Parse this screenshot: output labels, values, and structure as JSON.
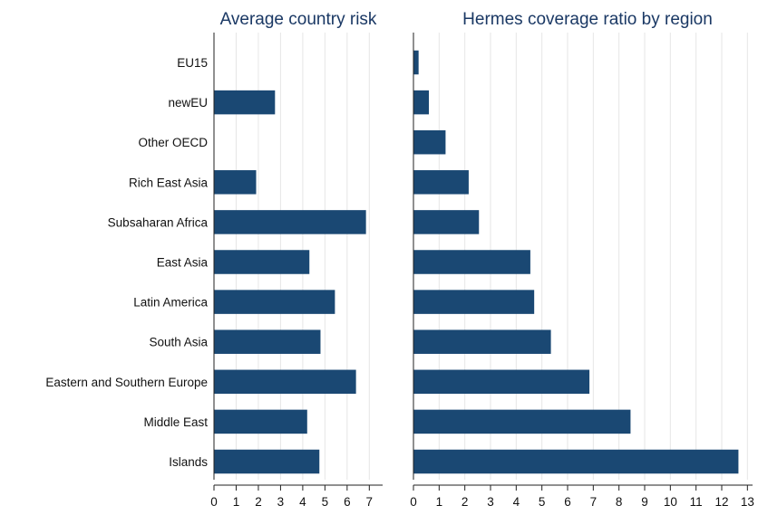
{
  "chart_data": [
    {
      "type": "bar",
      "orientation": "horizontal",
      "title": "Average country risk",
      "categories": [
        "EU15",
        "newEU",
        "Other OECD",
        "Rich East Asia",
        "Subsaharan Africa",
        "East Asia",
        "Latin America",
        "South Asia",
        "Eastern and Southern Europe",
        "Middle East",
        "Islands"
      ],
      "values": [
        0,
        2.75,
        0,
        1.9,
        6.85,
        4.3,
        5.45,
        4.8,
        6.4,
        4.2,
        4.75
      ],
      "xlim": [
        0,
        7.6
      ],
      "xticks": [
        0,
        1,
        2,
        3,
        4,
        5,
        6,
        7
      ],
      "grid": true,
      "color": "#1a4873"
    },
    {
      "type": "bar",
      "orientation": "horizontal",
      "title": "Hermes coverage ratio by region",
      "categories": [
        "EU15",
        "newEU",
        "Other OECD",
        "Rich East Asia",
        "Subsaharan Africa",
        "East Asia",
        "Latin America",
        "South Asia",
        "Eastern and Southern Europe",
        "Middle East",
        "Islands"
      ],
      "values": [
        0.2,
        0.6,
        1.25,
        2.15,
        2.55,
        4.55,
        4.7,
        5.35,
        6.85,
        8.45,
        12.65
      ],
      "xlim": [
        0,
        13.2
      ],
      "xticks": [
        0,
        1,
        2,
        3,
        4,
        5,
        6,
        7,
        8,
        9,
        10,
        11,
        12,
        13
      ],
      "grid": true,
      "color": "#1a4873"
    }
  ]
}
